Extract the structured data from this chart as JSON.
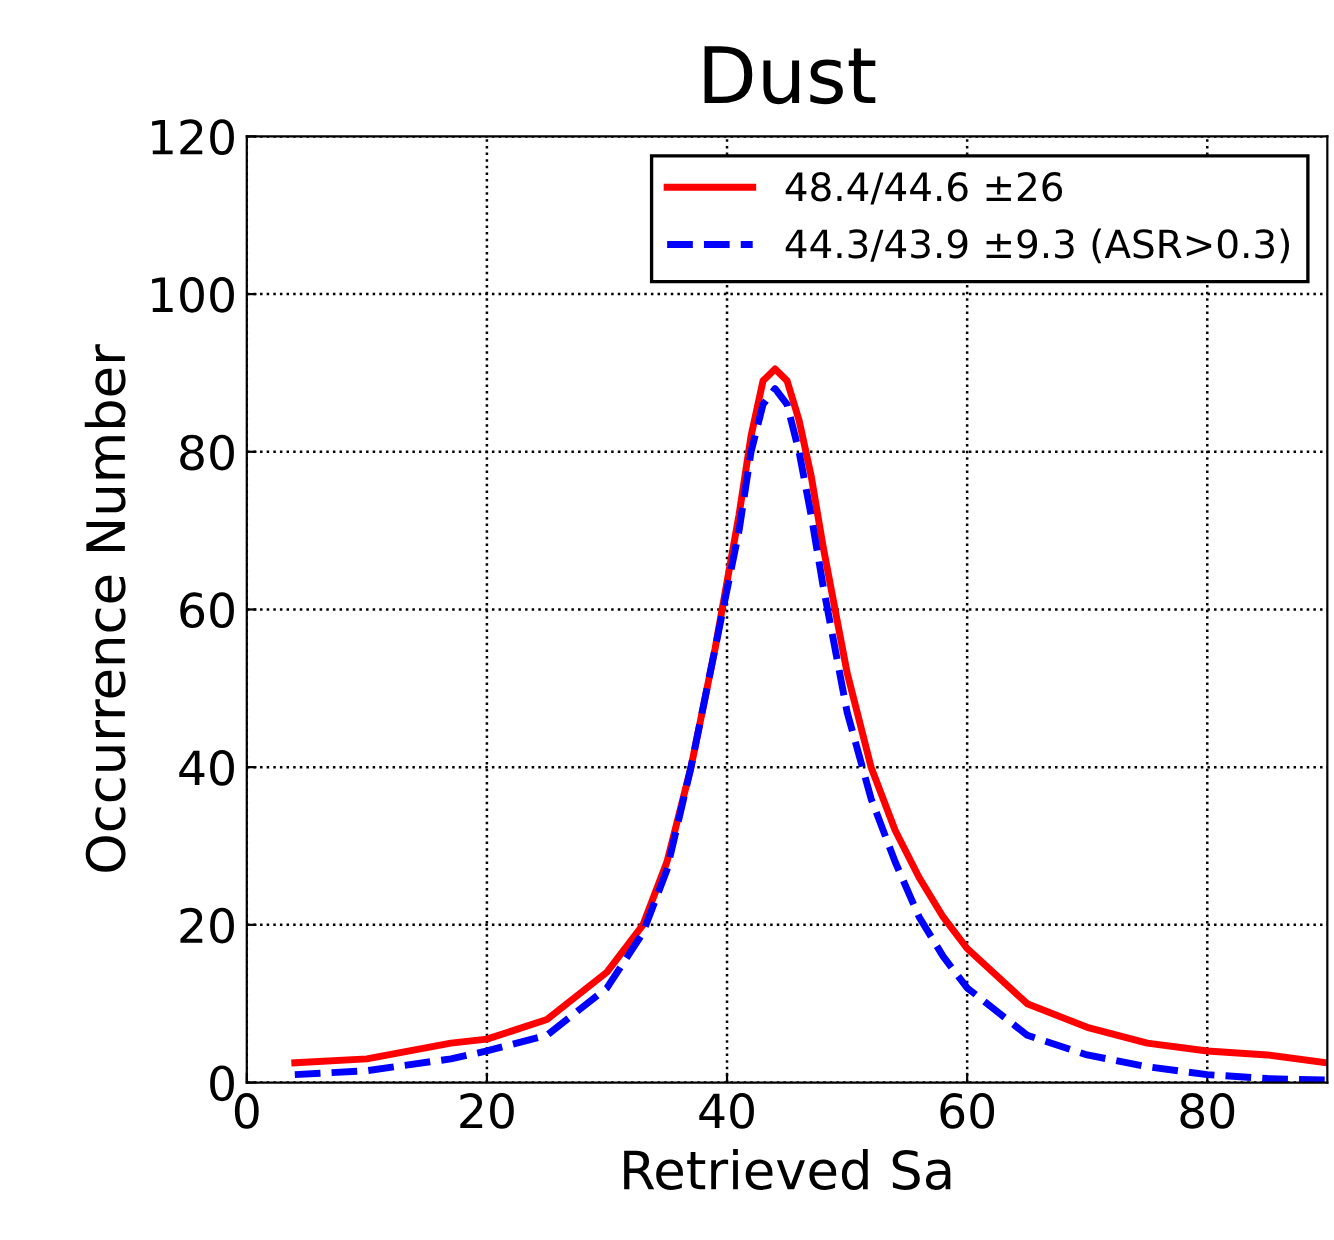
{
  "chart_data": {
    "type": "line",
    "title": "Dust",
    "xlabel": "Retrieved Sa",
    "ylabel": "Occurrence Number",
    "xlim": [
      0,
      90
    ],
    "ylim": [
      0,
      120
    ],
    "xticks": [
      0,
      20,
      40,
      60,
      80
    ],
    "yticks": [
      0,
      20,
      40,
      60,
      80,
      100,
      120
    ],
    "grid": true,
    "legend": "top right",
    "series": [
      {
        "name": "48.4/44.6 ±26",
        "color": "#ff0000",
        "line_style": "solid",
        "x": [
          4,
          10,
          17,
          20,
          25,
          30,
          33,
          35,
          37,
          39,
          41,
          42,
          43,
          44,
          45,
          46,
          47,
          48,
          50,
          52,
          54,
          56,
          58,
          60,
          65,
          70,
          75,
          80,
          85,
          90
        ],
        "values": [
          2.5,
          3,
          5,
          5.5,
          8,
          14,
          20,
          28,
          40,
          55,
          72,
          82,
          89,
          90.5,
          89,
          84,
          77,
          68,
          52,
          40,
          32,
          26,
          21,
          17,
          10,
          7,
          5,
          4,
          3.5,
          2.5
        ]
      },
      {
        "name": "44.3/43.9 ±9.3 (ASR>0.3)",
        "color": "#0000ff",
        "line_style": "dashed",
        "x": [
          4,
          10,
          17,
          20,
          25,
          30,
          33,
          35,
          37,
          39,
          41,
          42,
          43,
          44,
          45,
          46,
          47,
          48,
          50,
          52,
          54,
          56,
          58,
          60,
          65,
          70,
          75,
          80,
          85,
          90
        ],
        "values": [
          1,
          1.5,
          3,
          4,
          6,
          12,
          19,
          27,
          40,
          55,
          70,
          80,
          86,
          88,
          86,
          80,
          72,
          63,
          47,
          36,
          28,
          21,
          16,
          12,
          6,
          3.5,
          2,
          1,
          0.5,
          0.3
        ]
      }
    ]
  }
}
